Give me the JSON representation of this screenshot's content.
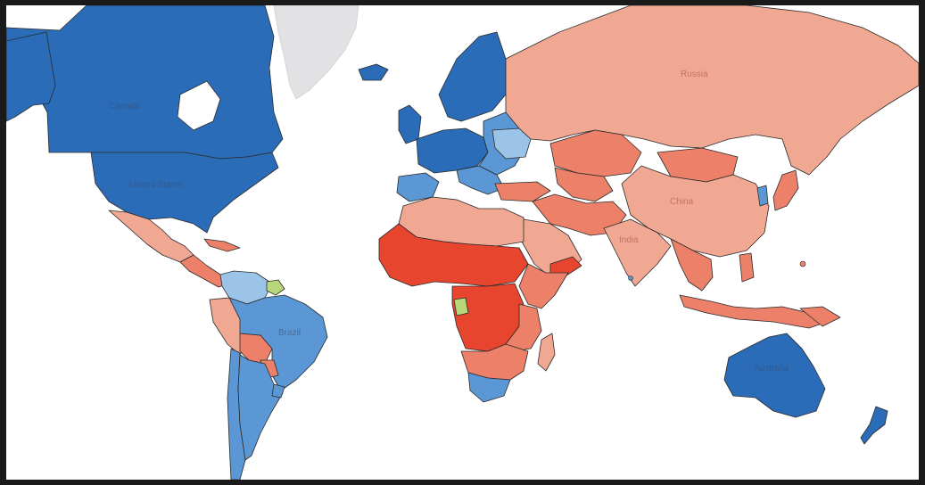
{
  "map": {
    "labels": {
      "canada": "Canada",
      "united_states": "United States",
      "brazil": "Brazil",
      "russia": "Russia",
      "china": "China",
      "india": "India",
      "australia": "Australia"
    },
    "colors": {
      "dark_blue": "#2a6cb8",
      "mid_blue": "#5a97d4",
      "light_blue": "#9cc3e8",
      "pale_salmon": "#f1a892",
      "salmon": "#ec8068",
      "red": "#e8452f",
      "green": "#b8d77b",
      "no_data": "#e2e2e4",
      "border": "#2b2b2b"
    }
  }
}
